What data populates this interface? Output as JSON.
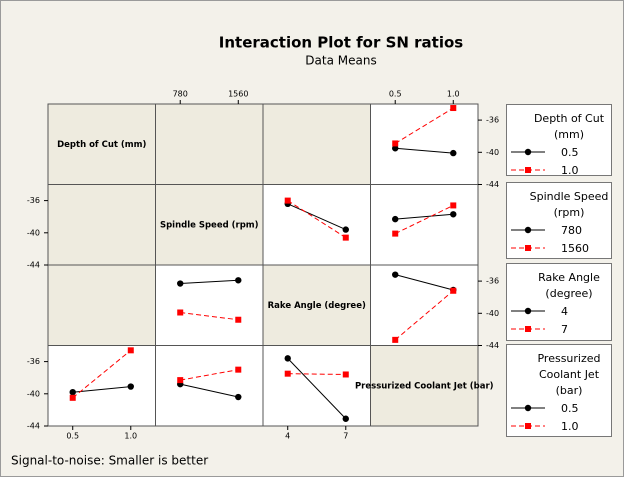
{
  "chart_data": {
    "type": "interaction",
    "title": "Interaction Plot for SN ratios",
    "subtitle": "Data Means",
    "footnote": "Signal-to-noise: Smaller is better",
    "factors": [
      {
        "name": "Depth of Cut (mm)",
        "levels": [
          0.5,
          {
            "value": 1,
            "label": "1.0"
          }
        ]
      },
      {
        "name": "Spindle Speed (rpm)",
        "levels": [
          780,
          1560
        ]
      },
      {
        "name": "Rake Angle (degree)",
        "levels": [
          4,
          7
        ]
      },
      {
        "name": "Pressurized Coolant Jet (bar)",
        "levels": [
          0.5,
          {
            "value": 1,
            "label": "1.0"
          }
        ]
      }
    ],
    "series_styles": [
      {
        "color": "#000000",
        "marker": "circle",
        "dashed": false
      },
      {
        "color": "#ff0000",
        "marker": "square",
        "dashed": true
      }
    ],
    "ylim": [
      -44,
      -34
    ],
    "yticks": [
      -36,
      -40,
      -44
    ],
    "y_axis_sides": [
      "right",
      "left",
      "right",
      "left"
    ],
    "x_axis_sides": [
      "bottom",
      "top",
      "bottom",
      "top"
    ],
    "grid": [
      [
        null,
        null,
        null,
        [
          [
            -39.5,
            -40.1
          ],
          [
            -38.9,
            -34.5
          ]
        ]
      ],
      [
        null,
        null,
        [
          [
            -36.4,
            -39.6
          ],
          [
            -36.0,
            -40.6
          ]
        ],
        [
          [
            -38.3,
            -37.7
          ],
          [
            -40.1,
            -36.6
          ]
        ]
      ],
      [
        null,
        [
          [
            -36.3,
            -35.9
          ],
          [
            -39.9,
            -40.8
          ]
        ],
        null,
        [
          [
            -35.2,
            -37.1
          ],
          [
            -43.3,
            -37.2
          ]
        ]
      ],
      [
        [
          [
            -39.8,
            -39.1
          ],
          [
            -40.5,
            -34.6
          ]
        ],
        [
          [
            -38.8,
            -40.4
          ],
          [
            -38.3,
            -37.0
          ]
        ],
        [
          [
            -35.6,
            -43.1
          ],
          [
            -37.5,
            -37.6
          ]
        ],
        null
      ]
    ]
  }
}
